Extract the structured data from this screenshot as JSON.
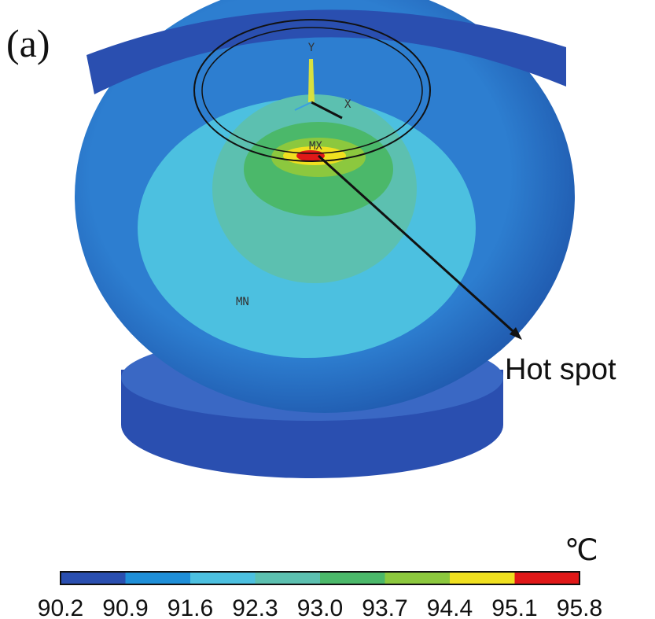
{
  "panel_label": "(a)",
  "model_labels": {
    "y_axis": "Y",
    "x_axis": "X",
    "max": "MX",
    "min": "MN"
  },
  "annotation": "Hot spot",
  "colorbar": {
    "unit": "℃",
    "ticks": [
      "90.2",
      "90.9",
      "91.6",
      "92.3",
      "93.0",
      "93.7",
      "94.4",
      "95.1",
      "95.8"
    ],
    "colors": [
      "#2a4fb0",
      "#1f8fd8",
      "#4cc0e0",
      "#5cc0b0",
      "#4bb86a",
      "#8cc83e",
      "#f0e020",
      "#e01818"
    ]
  }
}
